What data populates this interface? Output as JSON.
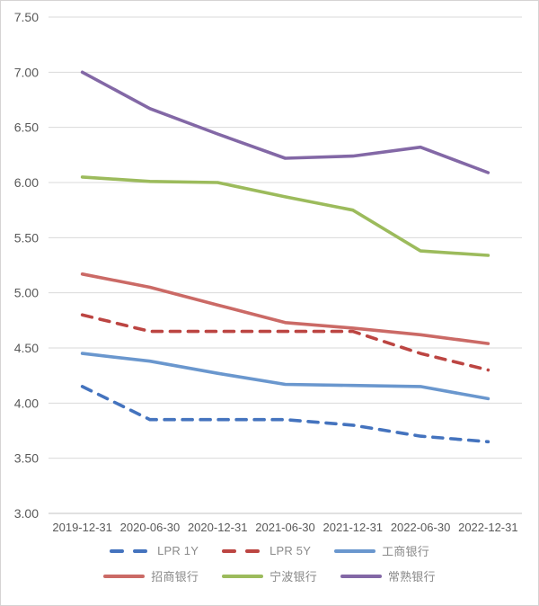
{
  "chart_data": {
    "type": "line",
    "title": "",
    "xlabel": "",
    "ylabel": "",
    "categories": [
      "2019-12-31",
      "2020-06-30",
      "2020-12-31",
      "2021-06-30",
      "2021-12-31",
      "2022-06-30",
      "2022-12-31"
    ],
    "series": [
      {
        "name": "LPR 1Y",
        "dashed": true,
        "color": "#4473be",
        "values": [
          4.15,
          3.85,
          3.85,
          3.85,
          3.8,
          3.7,
          3.65
        ]
      },
      {
        "name": "LPR 5Y",
        "dashed": true,
        "color": "#bc4542",
        "values": [
          4.8,
          4.65,
          4.65,
          4.65,
          4.65,
          4.45,
          4.3
        ]
      },
      {
        "name": "工商银行",
        "dashed": false,
        "color": "#6a97ce",
        "values": [
          4.45,
          4.38,
          4.27,
          4.17,
          4.16,
          4.15,
          4.04
        ]
      },
      {
        "name": "招商银行",
        "dashed": false,
        "color": "#cb6a66",
        "values": [
          5.17,
          5.05,
          4.89,
          4.73,
          4.68,
          4.62,
          4.54
        ]
      },
      {
        "name": "宁波银行",
        "dashed": false,
        "color": "#9cbb5c",
        "values": [
          6.05,
          6.01,
          6.0,
          5.87,
          5.75,
          5.38,
          5.34
        ]
      },
      {
        "name": "常熟银行",
        "dashed": false,
        "color": "#8368a6",
        "values": [
          7.0,
          6.67,
          6.44,
          6.22,
          6.24,
          6.32,
          6.09
        ]
      }
    ],
    "ylim": [
      3.0,
      7.5
    ],
    "ytick_step": 0.5,
    "ytick_labels": [
      "7.50",
      "7.00",
      "6.50",
      "6.00",
      "5.50",
      "5.00",
      "4.50",
      "4.00",
      "3.50",
      "3.00"
    ],
    "grid": true,
    "legend_position": "bottom",
    "legend_rows": [
      [
        "LPR 1Y",
        "LPR 5Y",
        "工商银行"
      ],
      [
        "招商银行",
        "宁波银行",
        "常熟银行"
      ]
    ]
  },
  "colors": {
    "background": "#ffffff",
    "frame_border": "#d6d4d4",
    "gridline": "#dadada",
    "axis_line": "#c3c3c3",
    "axis_text": "#595959",
    "legend_text": "#8a8a8a"
  }
}
